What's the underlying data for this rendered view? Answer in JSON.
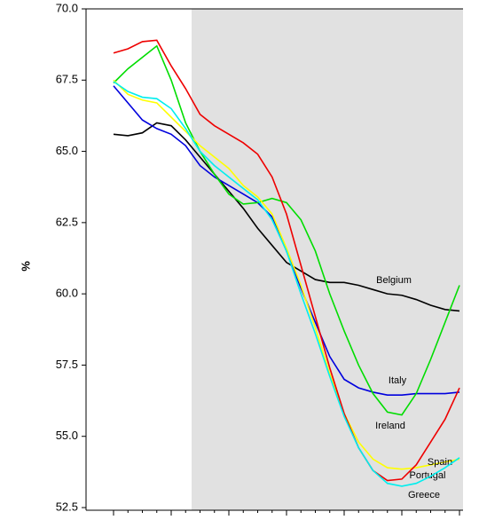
{
  "chart_data": {
    "type": "line",
    "y_label": "%",
    "categories": [
      null,
      null,
      null,
      null,
      null,
      null,
      null,
      null,
      null,
      null,
      null,
      null,
      null,
      null,
      null,
      null,
      null,
      null,
      null,
      null,
      null,
      null,
      null,
      null,
      null
    ],
    "ylim": [
      52.5,
      70
    ],
    "yticks": [
      {
        "value": 52.5,
        "label": "52.5"
      },
      {
        "value": 55,
        "label": "55.0"
      },
      {
        "value": 57.5,
        "label": "57.5"
      },
      {
        "value": 60,
        "label": "60.0"
      },
      {
        "value": 62.5,
        "label": "62.5"
      },
      {
        "value": 65,
        "label": "65.0"
      },
      {
        "value": 67.5,
        "label": "67.5"
      },
      {
        "value": 70,
        "label": "70.0"
      }
    ],
    "series": [
      {
        "name": "Belgium",
        "color": "#000000",
        "values": [
          65.6,
          65.55,
          65.65,
          66.0,
          65.9,
          65.4,
          64.8,
          64.2,
          63.6,
          63.0,
          62.3,
          61.7,
          61.1,
          60.8,
          60.5,
          60.4,
          60.4,
          60.3,
          60.15,
          60.0,
          59.95,
          59.8,
          59.6,
          59.45,
          59.4
        ]
      },
      {
        "name": "Italy",
        "color": "#0000dd",
        "values": [
          67.3,
          66.7,
          66.1,
          65.8,
          65.6,
          65.2,
          64.5,
          64.1,
          63.8,
          63.5,
          63.2,
          62.7,
          61.5,
          60.2,
          59.0,
          57.8,
          57.0,
          56.7,
          56.55,
          56.45,
          56.45,
          56.5,
          56.5,
          56.5,
          56.55
        ]
      },
      {
        "name": "Ireland",
        "color": "#00dd00",
        "values": [
          67.4,
          67.9,
          68.3,
          68.7,
          67.5,
          66.0,
          65.0,
          64.2,
          63.5,
          63.15,
          63.2,
          63.35,
          63.2,
          62.6,
          61.5,
          60.0,
          58.7,
          57.5,
          56.5,
          55.85,
          55.75,
          56.5,
          57.7,
          59.0,
          60.3
        ]
      },
      {
        "name": "Spain",
        "color": "#ffff00",
        "values": [
          67.5,
          67.0,
          66.8,
          66.7,
          66.2,
          65.7,
          65.2,
          64.8,
          64.4,
          63.8,
          63.4,
          62.8,
          61.6,
          60.3,
          58.8,
          57.2,
          55.8,
          54.8,
          54.2,
          53.9,
          53.85,
          53.9,
          54.0,
          54.1,
          54.2
        ]
      },
      {
        "name": "Portugal",
        "color": "#ee0000",
        "values": [
          68.45,
          68.6,
          68.85,
          68.9,
          68.0,
          67.2,
          66.3,
          65.9,
          65.6,
          65.3,
          64.9,
          64.1,
          62.8,
          61.0,
          59.2,
          57.4,
          55.8,
          54.6,
          53.8,
          53.45,
          53.5,
          54.0,
          54.8,
          55.6,
          56.7
        ]
      },
      {
        "name": "Greece",
        "color": "#00eeee",
        "values": [
          67.45,
          67.1,
          66.9,
          66.85,
          66.5,
          65.8,
          65.0,
          64.5,
          64.1,
          63.7,
          63.3,
          62.6,
          61.5,
          60.0,
          58.6,
          57.1,
          55.7,
          54.6,
          53.8,
          53.35,
          53.25,
          53.35,
          53.6,
          53.9,
          54.25
        ]
      }
    ]
  }
}
